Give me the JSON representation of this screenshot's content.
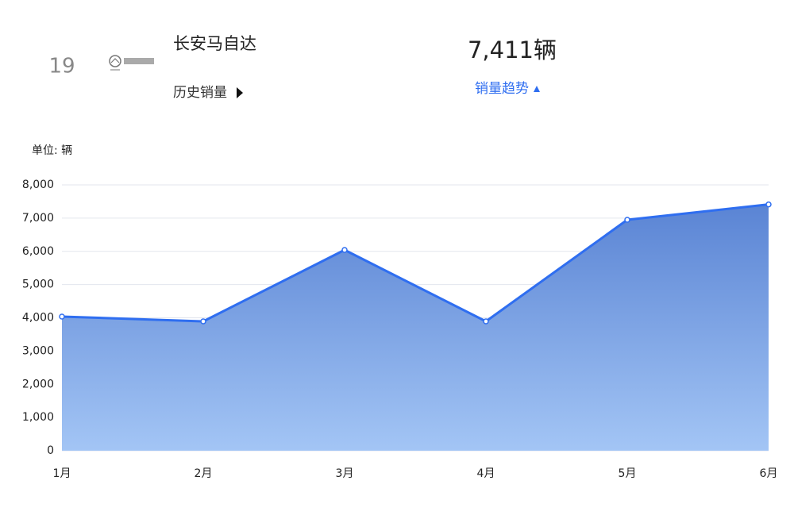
{
  "header": {
    "rank": "19",
    "brand": "长安马自达",
    "history_label": "历史销量",
    "total": "7,411辆",
    "trend_label": "销量趋势"
  },
  "chart_data": {
    "type": "area",
    "unit_label": "单位: 辆",
    "categories": [
      "1月",
      "2月",
      "3月",
      "4月",
      "5月",
      "6月"
    ],
    "values": [
      4036,
      3893,
      6042,
      3893,
      6949,
      7411
    ],
    "color": "#2f6ef0",
    "ylim": [
      0,
      8000
    ],
    "yticks": [
      0,
      {
        "value": 1000,
        "label": "1,000"
      },
      {
        "value": 2000,
        "label": "2,000"
      },
      {
        "value": 3000,
        "label": "3,000"
      },
      {
        "value": 4000,
        "label": "4,000"
      },
      {
        "value": 5000,
        "label": "5,000"
      },
      {
        "value": 6000,
        "label": "6,000"
      },
      {
        "value": 7000,
        "label": "7,000"
      },
      {
        "value": 8000,
        "label": "8,000"
      }
    ],
    "grid": true
  }
}
